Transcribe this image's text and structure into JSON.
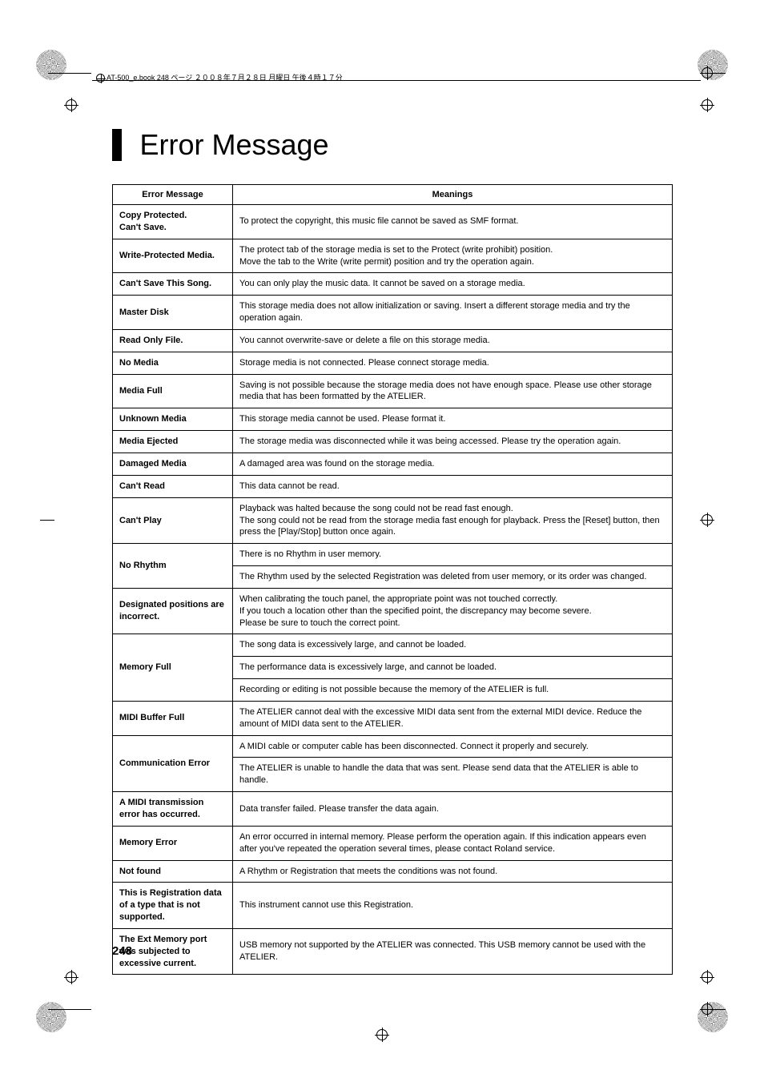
{
  "header_text": "AT-500_e.book 248 ページ ２００８年７月２８日 月曜日 午後４時１７分",
  "title": "Error Message",
  "page_number": "248",
  "table": {
    "headers": [
      "Error Message",
      "Meanings"
    ],
    "rows": [
      {
        "label": "Copy Protected.\nCan't Save.",
        "meaning": "To protect the copyright, this music file cannot be saved as SMF format.",
        "rowspan": 1
      },
      {
        "label": "Write-Protected Media.",
        "meaning": "The protect tab of the storage media is set to the Protect (write prohibit) position.\nMove the tab to the Write (write permit) position and try the operation again.",
        "rowspan": 1
      },
      {
        "label": "Can't Save This Song.",
        "meaning": "You can only play the music data. It cannot be saved on a storage media.",
        "rowspan": 1
      },
      {
        "label": "Master Disk",
        "meaning": "This storage media does not allow initialization or saving. Insert a different storage media and try the operation again.",
        "rowspan": 1
      },
      {
        "label": "Read Only File.",
        "meaning": "You cannot overwrite-save or delete a file on this storage media.",
        "rowspan": 1
      },
      {
        "label": "No Media",
        "meaning": "Storage media is not connected. Please connect storage media.",
        "rowspan": 1
      },
      {
        "label": "Media Full",
        "meaning": "Saving is not possible because the storage media does not have enough space. Please use other storage media that has been formatted by the ATELIER.",
        "rowspan": 1
      },
      {
        "label": "Unknown Media",
        "meaning": "This storage media cannot be used. Please format it.",
        "rowspan": 1
      },
      {
        "label": "Media Ejected",
        "meaning": "The storage media was disconnected while it was being accessed. Please try the operation again.",
        "rowspan": 1
      },
      {
        "label": "Damaged Media",
        "meaning": "A damaged area was found on the storage media.",
        "rowspan": 1
      },
      {
        "label": "Can't Read",
        "meaning": "This data cannot be read.",
        "rowspan": 1
      },
      {
        "label": "Can't Play",
        "meaning": "Playback was halted because the song could not be read fast enough.\nThe song could not be read from the storage media fast enough for playback. Press the [Reset] button, then press the [Play/Stop] button once again.",
        "rowspan": 1
      },
      {
        "label": "No Rhythm",
        "meanings": [
          "There is no Rhythm in user memory.",
          "The Rhythm used by the selected Registration was deleted from user memory, or its order was changed."
        ],
        "rowspan": 2
      },
      {
        "label": "Designated positions are incorrect.",
        "meaning": "When calibrating the touch panel, the appropriate point was not touched correctly.\nIf you touch a location other than the specified point, the discrepancy may become severe.\nPlease be sure to touch the correct point.",
        "rowspan": 1
      },
      {
        "label": "Memory Full",
        "meanings": [
          "The song data is excessively large, and cannot be loaded.",
          "The performance data is excessively large, and cannot be loaded.",
          "Recording or editing is not possible because the memory of the ATELIER is full."
        ],
        "rowspan": 3
      },
      {
        "label": "MIDI Buffer Full",
        "meaning": "The ATELIER cannot deal with the excessive MIDI data sent from the external MIDI device. Reduce the amount of MIDI data sent to the ATELIER.",
        "rowspan": 1
      },
      {
        "label": "Communication Error",
        "meanings": [
          "A MIDI cable or computer cable has been disconnected. Connect it properly and securely.",
          "The ATELIER is unable to handle the data that was sent. Please send data that the ATELIER is able to handle."
        ],
        "rowspan": 2
      },
      {
        "label": "A MIDI transmission error has occurred.",
        "meaning": "Data transfer failed. Please transfer the data again.",
        "rowspan": 1
      },
      {
        "label": "Memory Error",
        "meaning": "An error occurred in internal memory. Please perform the operation again. If this indication appears even after you've repeated the operation several times, please contact Roland service.",
        "rowspan": 1
      },
      {
        "label": "Not found",
        "meaning": "A Rhythm or Registration that meets the conditions was not found.",
        "rowspan": 1
      },
      {
        "label": "This is Registration data of a type that is not supported.",
        "meaning": "This instrument cannot use this Registration.",
        "rowspan": 1
      },
      {
        "label": "The Ext Memory port was subjected to excessive current.",
        "meaning": "USB memory not supported by the ATELIER was connected. This USB memory cannot be used with the ATELIER.",
        "rowspan": 1
      }
    ]
  }
}
